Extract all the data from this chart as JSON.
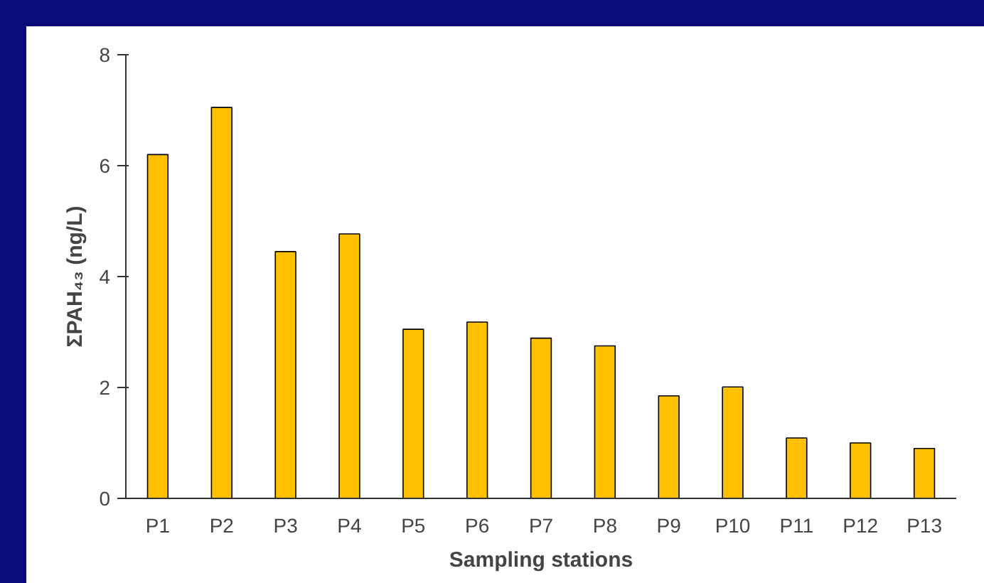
{
  "chart_data": {
    "type": "bar",
    "xlabel": "Sampling stations",
    "ylabel": "ΣPAH₄₃ (ng/L)",
    "categories": [
      "P1",
      "P2",
      "P3",
      "P4",
      "P5",
      "P6",
      "P7",
      "P8",
      "P9",
      "P10",
      "P11",
      "P12",
      "P13"
    ],
    "values": [
      6.2,
      7.05,
      4.45,
      4.77,
      3.05,
      3.18,
      2.89,
      2.75,
      1.85,
      2.01,
      1.09,
      1.0,
      0.9
    ],
    "color": "#ffc000",
    "ylim": [
      0,
      8
    ],
    "yticks": [
      0,
      2,
      4,
      6,
      8
    ],
    "grid": false
  }
}
